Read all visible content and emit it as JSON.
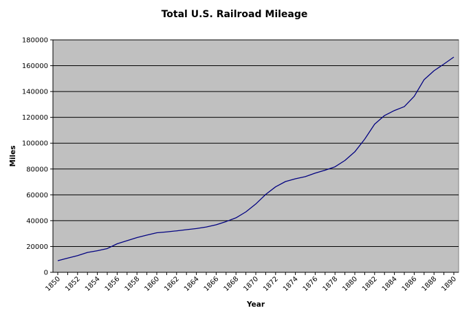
{
  "chart_data": {
    "type": "line",
    "title": "Total U.S. Railroad Mileage",
    "xlabel": "Year",
    "ylabel": "Miles",
    "xlim": [
      1850,
      1890
    ],
    "ylim": [
      0,
      180000
    ],
    "grid": "horizontal",
    "legend": "none",
    "x_tick_labels": [
      "1850",
      "1852",
      "1854",
      "1856",
      "1858",
      "1860",
      "1862",
      "1864",
      "1866",
      "1868",
      "1870",
      "1872",
      "1874",
      "1876",
      "1878",
      "1880",
      "1882",
      "1884",
      "1886",
      "1888",
      "1890"
    ],
    "y_tick_labels": [
      "0",
      "20000",
      "40000",
      "60000",
      "80000",
      "100000",
      "120000",
      "140000",
      "160000",
      "180000"
    ],
    "series": [
      {
        "color": "#000080",
        "x": [
          1850,
          1851,
          1852,
          1853,
          1854,
          1855,
          1856,
          1857,
          1858,
          1859,
          1860,
          1861,
          1862,
          1863,
          1864,
          1865,
          1866,
          1867,
          1868,
          1869,
          1870,
          1871,
          1872,
          1873,
          1874,
          1875,
          1876,
          1877,
          1878,
          1879,
          1880,
          1881,
          1882,
          1883,
          1884,
          1885,
          1886,
          1887,
          1888,
          1889,
          1890
        ],
        "y": [
          9000,
          11000,
          12900,
          15400,
          16700,
          18400,
          22100,
          24500,
          26900,
          28800,
          30600,
          31300,
          32100,
          33000,
          33900,
          35100,
          36800,
          39300,
          42200,
          46800,
          52900,
          60300,
          66200,
          70300,
          72400,
          74100,
          76800,
          79100,
          81700,
          86600,
          93300,
          103100,
          114700,
          121400,
          125300,
          128300,
          136300,
          149200,
          156100,
          161300,
          166700
        ]
      }
    ]
  },
  "colors": {
    "plot_background": "#c0c0c0",
    "gridline": "#000000",
    "line": "#000080"
  }
}
